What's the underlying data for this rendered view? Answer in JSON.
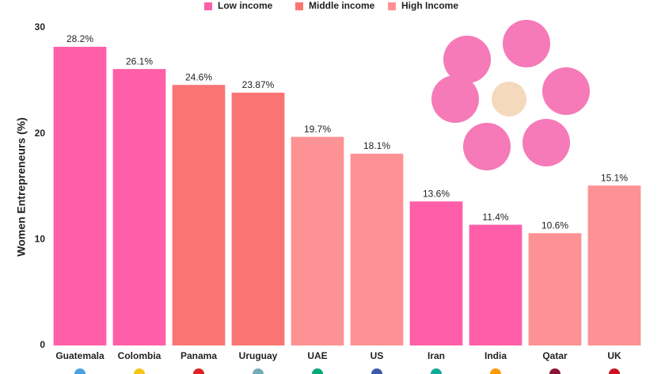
{
  "chart_data": {
    "type": "bar",
    "y_label": "Women Entrepreneurs (%)",
    "categories": [
      "Guatemala",
      "Colombia",
      "Panama",
      "Uruguay",
      "UAE",
      "US",
      "Iran",
      "India",
      "Qatar",
      "UK"
    ],
    "series": [
      {
        "name": "Low income",
        "color": "#ff5fa8",
        "values": [
          28.2,
          26.1,
          null,
          null,
          null,
          null,
          13.6,
          11.4,
          null,
          null
        ],
        "value_labels": [
          "28.2%",
          "26.1%",
          null,
          null,
          null,
          null,
          "13.6%",
          "11.4%",
          null,
          null
        ]
      },
      {
        "name": "Middle income",
        "color": "#fb7474",
        "values": [
          null,
          null,
          24.6,
          23.87,
          null,
          null,
          null,
          null,
          null,
          null
        ],
        "value_labels": [
          null,
          null,
          "24.6%",
          "23.87%",
          null,
          null,
          null,
          null,
          null,
          null
        ]
      },
      {
        "name": "High Income",
        "color": "#fd9294",
        "values": [
          null,
          null,
          null,
          null,
          19.7,
          18.1,
          null,
          null,
          10.6,
          15.1
        ],
        "value_labels": [
          null,
          null,
          null,
          null,
          "19.7%",
          "18.1%",
          null,
          null,
          "10.6%",
          "15.1%"
        ]
      }
    ],
    "ylim": [
      0,
      30
    ],
    "yticks": [
      0,
      10,
      20,
      30
    ],
    "grid": false
  }
}
